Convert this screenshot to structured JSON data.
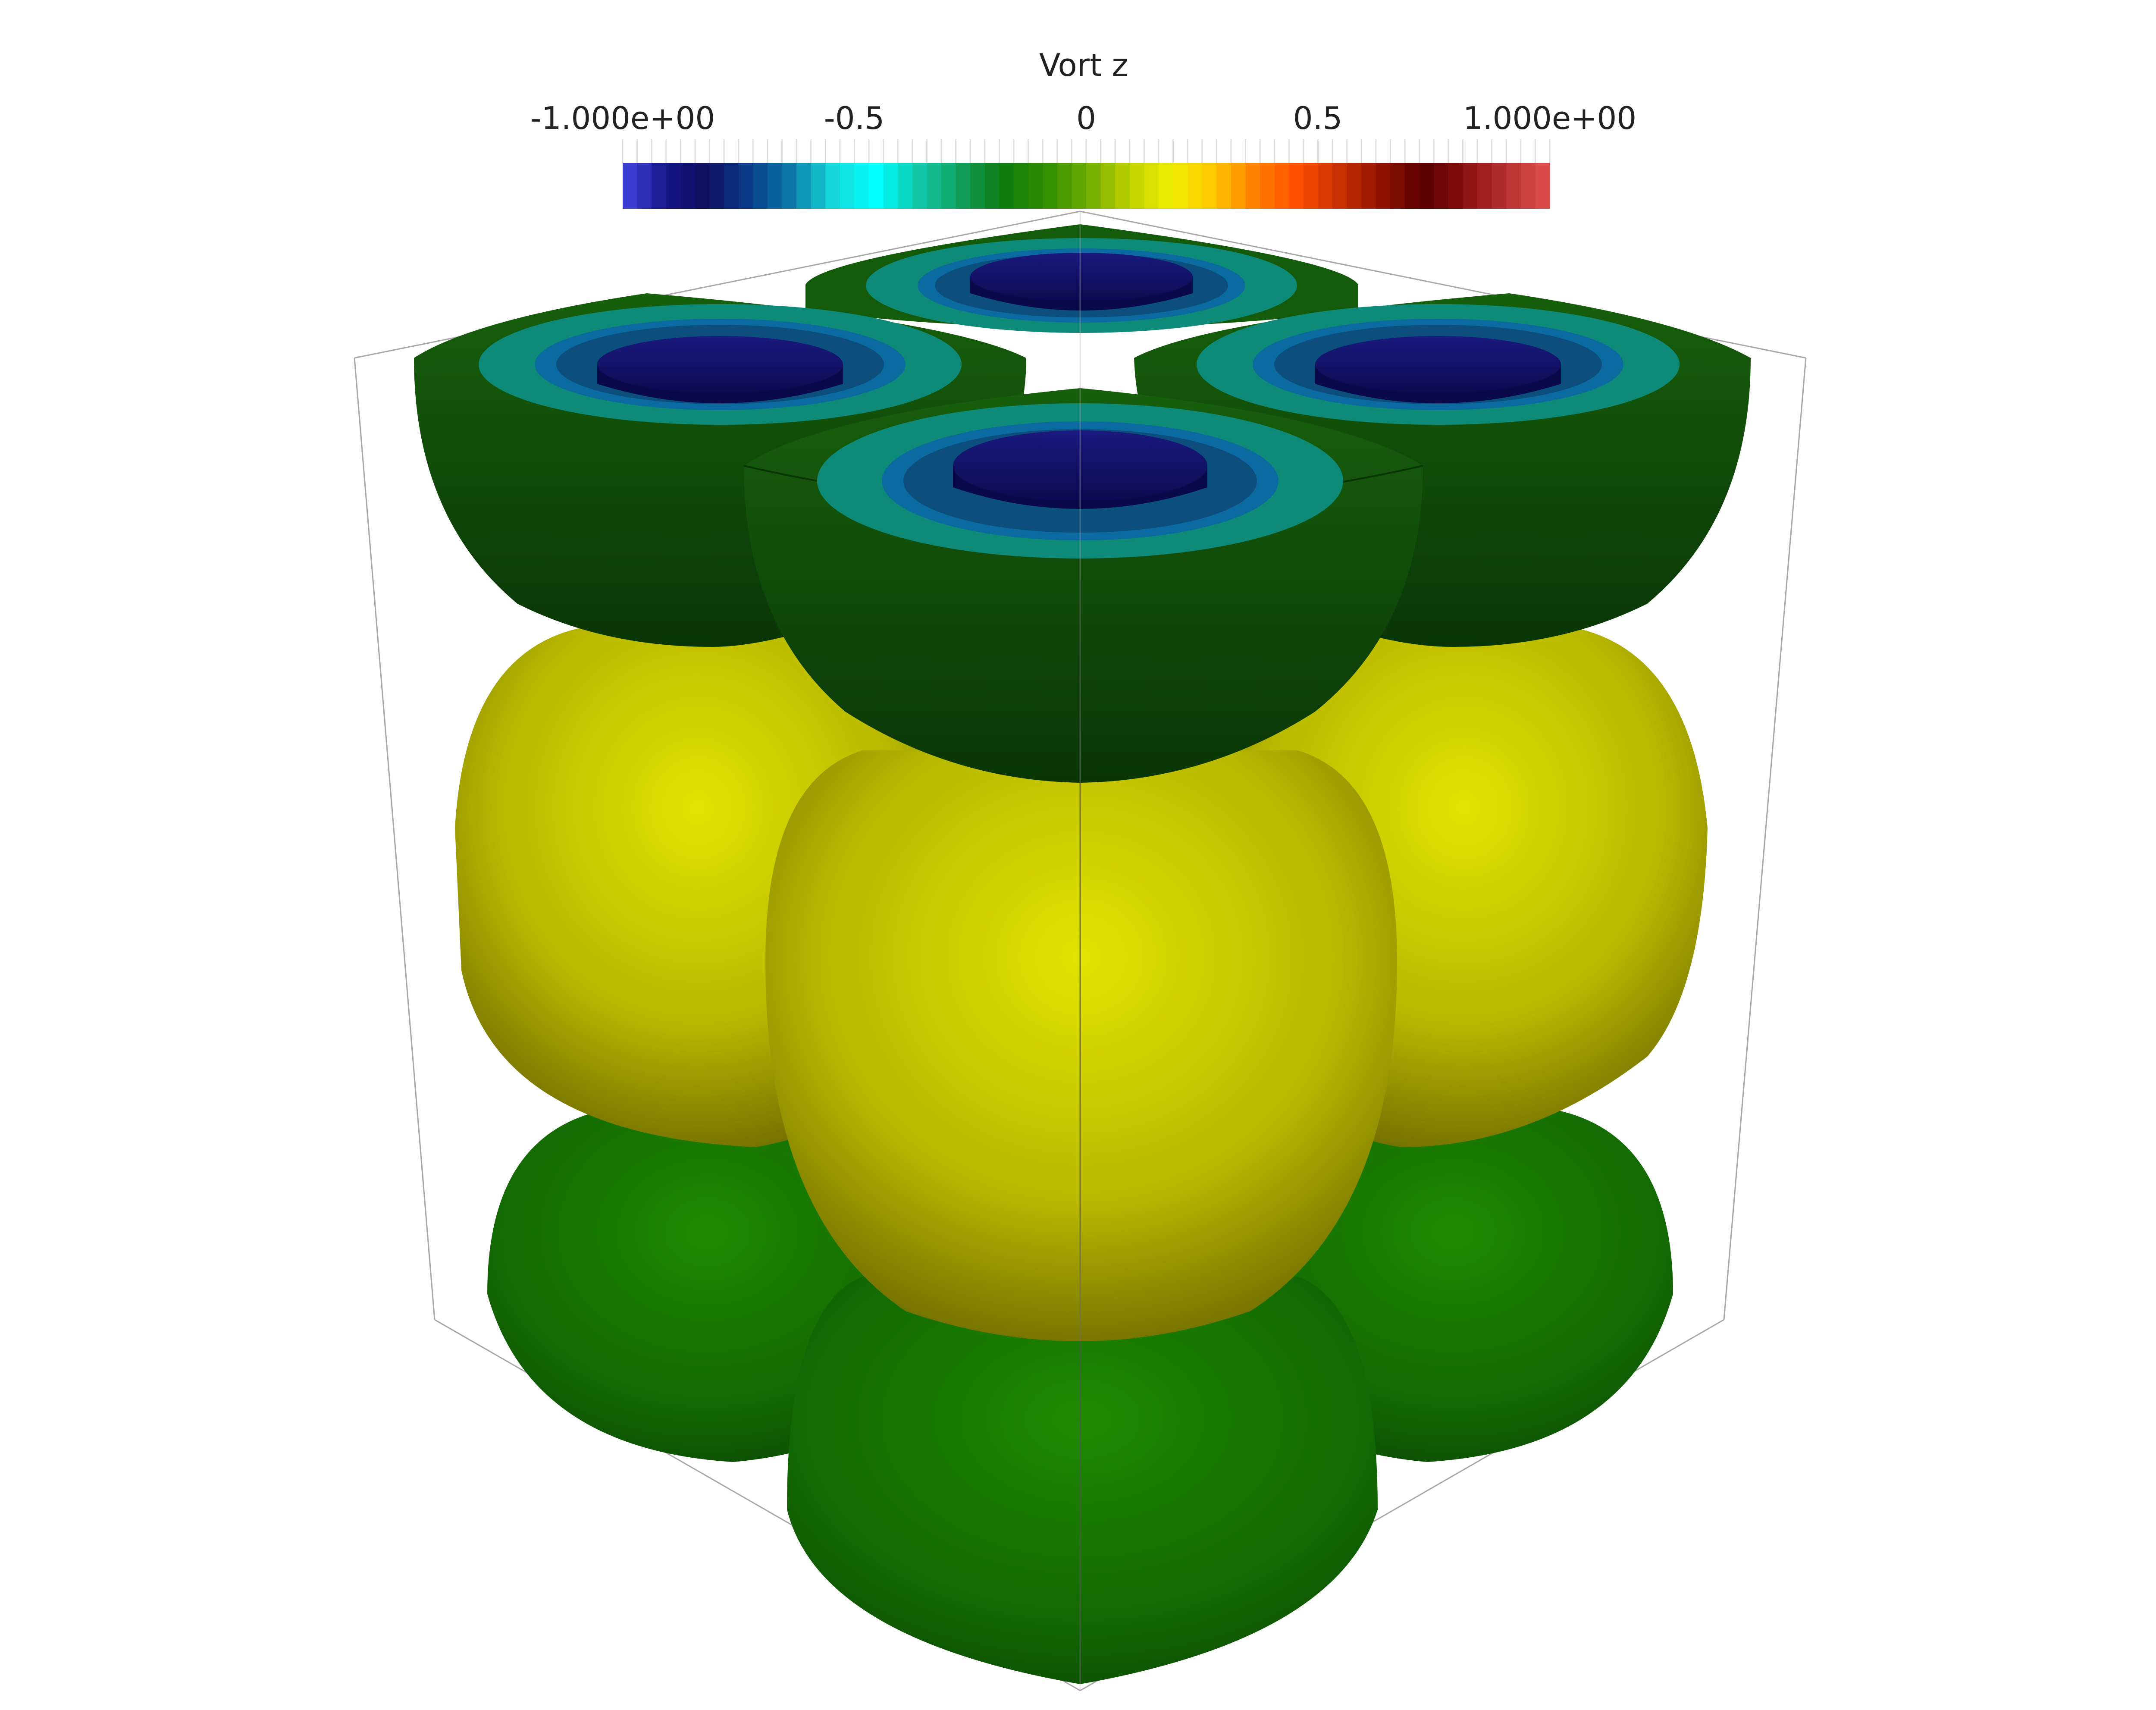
{
  "colorbar": {
    "title": "Vort z",
    "tick_labels": [
      "-1.000e+00",
      "-0.5",
      "0",
      "0.5",
      "1.000e+00"
    ],
    "min": -1.0,
    "max": 1.0,
    "colormap_stops": [
      "#4545e0",
      "#16168a",
      "#0f0f5c",
      "#0a3c8a",
      "#0a7aa8",
      "#16d8d8",
      "#00ffff",
      "#10c8a8",
      "#10a060",
      "#0f7a10",
      "#2e8c00",
      "#6aaa00",
      "#bcd000",
      "#f0f000",
      "#ffc800",
      "#ff8000",
      "#ff5000",
      "#c83000",
      "#901400",
      "#5a0000",
      "#8a1010",
      "#b83030",
      "#e05050"
    ]
  },
  "scene": {
    "colors": {
      "top_outer": "#155e0c",
      "top_outer_dark": "#0b3a06",
      "ring_teal": "#0d8a7a",
      "ring_blue": "#0b6aa0",
      "core_navy": "#13136b",
      "middle_yellow": "#d4d600",
      "middle_yellow_dark": "#6e6a00",
      "bottom_green": "#1a7d00",
      "bottom_green_dark": "#0c4a03",
      "box_edge": "#aaaaaa"
    }
  }
}
